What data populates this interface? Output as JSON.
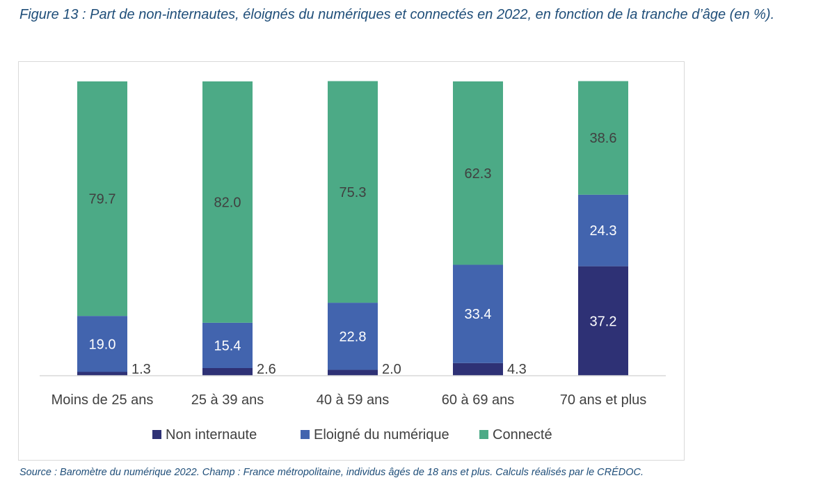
{
  "figure": {
    "title": "Figure 13 : Part de non-internautes, éloignés du numériques et connectés en 2022, en fonction de la tranche d’âge (en %).",
    "source": "Source : Baromètre du numérique 2022. Champ : France métropolitaine, individus âgés de 18 ans et plus. Calculs réalisés par le CRÉDOC."
  },
  "chart_data": {
    "type": "bar",
    "stacked": true,
    "categories": [
      "Moins de 25 ans",
      "25 à 39 ans",
      "40 à 59 ans",
      "60 à 69 ans",
      "70 ans et plus"
    ],
    "series": [
      {
        "name": "Non internaute",
        "color": "#2e3175",
        "values": [
          1.3,
          2.6,
          2.0,
          4.3,
          37.2
        ]
      },
      {
        "name": "Eloigné du numérique",
        "color": "#4264ae",
        "values": [
          19.0,
          15.4,
          22.8,
          33.4,
          24.3
        ]
      },
      {
        "name": "Connecté",
        "color": "#4caa86",
        "values": [
          79.7,
          82.0,
          75.3,
          62.3,
          38.6
        ]
      }
    ],
    "ylim": [
      0,
      100
    ],
    "grid": false,
    "legend_position": "bottom",
    "xlabel": "",
    "ylabel": ""
  }
}
